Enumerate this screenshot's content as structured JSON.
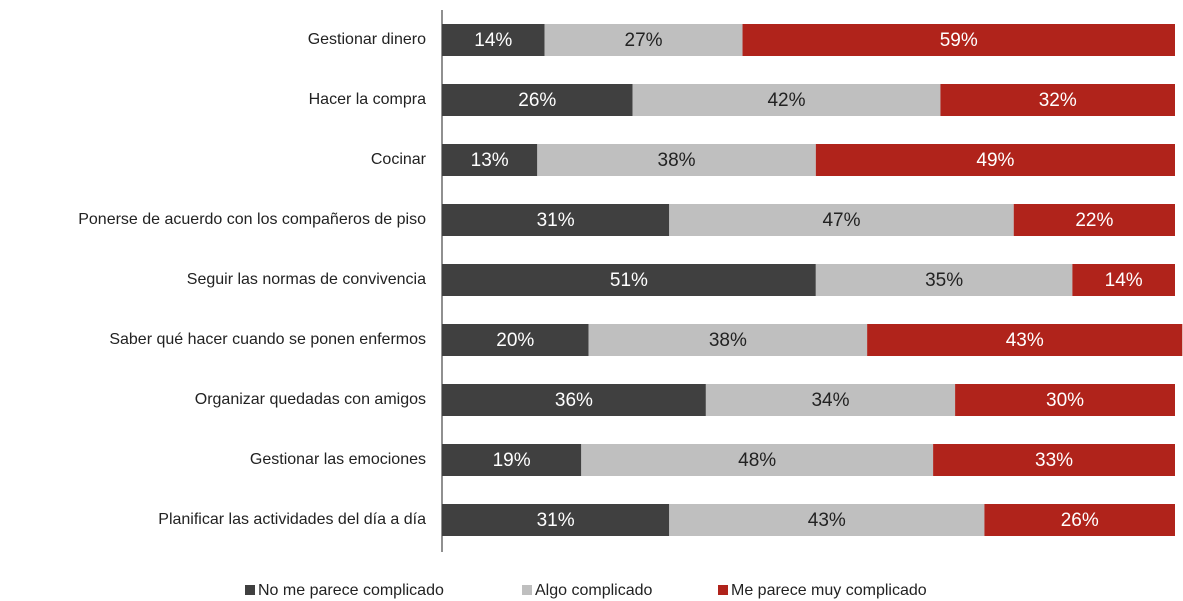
{
  "chart_data": {
    "type": "stacked-bar",
    "categories": [
      "Gestionar dinero",
      "Hacer la compra",
      "Cocinar",
      "Ponerse de acuerdo con los compañeros de piso",
      "Seguir las normas de convivencia",
      "Saber qué hacer cuando se ponen enfermos",
      "Organizar quedadas con amigos",
      "Gestionar las emociones",
      "Planificar las actividades del día a día"
    ],
    "series": [
      {
        "name": "No me parece complicado",
        "color": "#404040",
        "values": [
          14,
          26,
          13,
          31,
          51,
          20,
          36,
          19,
          31
        ],
        "value_labels": [
          "14%",
          "26%",
          "13%",
          "31%",
          "51%",
          "20%",
          "36%",
          "19%",
          "31%"
        ]
      },
      {
        "name": "Algo complicado",
        "color": "#bfbfbf",
        "values": [
          27,
          42,
          38,
          47,
          35,
          38,
          34,
          48,
          43
        ],
        "value_labels": [
          "27%",
          "42%",
          "38%",
          "47%",
          "35%",
          "38%",
          "34%",
          "48%",
          "43%"
        ]
      },
      {
        "name": "Me parece muy complicado",
        "color": "#b0231b",
        "values": [
          59,
          32,
          49,
          22,
          14,
          43,
          30,
          33,
          26
        ],
        "value_labels": [
          "59%",
          "32%",
          "49%",
          "22%",
          "14%",
          "43%",
          "30%",
          "33%",
          "26%"
        ]
      }
    ],
    "legend": "bottom"
  }
}
